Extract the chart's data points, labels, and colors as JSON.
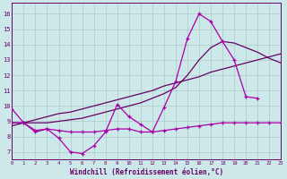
{
  "x_values": [
    0,
    1,
    2,
    3,
    4,
    5,
    6,
    7,
    8,
    9,
    10,
    11,
    12,
    13,
    14,
    15,
    16,
    17,
    18,
    19,
    20,
    21,
    22,
    23
  ],
  "jagged_y": [
    9.8,
    8.9,
    8.3,
    8.5,
    7.9,
    7.0,
    6.9,
    7.4,
    8.3,
    10.1,
    9.3,
    8.8,
    8.3,
    9.9,
    11.6,
    14.4,
    16.0,
    15.5,
    14.2,
    13.0,
    10.6,
    10.5,
    null,
    null
  ],
  "flat_y": [
    8.9,
    8.9,
    8.4,
    8.5,
    8.4,
    8.3,
    8.3,
    8.3,
    8.4,
    8.5,
    8.5,
    8.3,
    8.3,
    8.4,
    8.5,
    8.6,
    8.7,
    8.8,
    8.9,
    8.9,
    8.9,
    8.9,
    8.9,
    8.9
  ],
  "trend_straight": [
    8.7,
    8.9,
    9.1,
    9.3,
    9.5,
    9.6,
    9.8,
    10.0,
    10.2,
    10.4,
    10.6,
    10.8,
    11.0,
    11.3,
    11.5,
    11.7,
    11.9,
    12.2,
    12.4,
    12.6,
    12.8,
    13.0,
    13.2,
    13.4
  ],
  "trend_curved": [
    8.9,
    8.9,
    8.9,
    8.9,
    9.0,
    9.1,
    9.2,
    9.4,
    9.6,
    9.8,
    10.0,
    10.2,
    10.5,
    10.8,
    11.2,
    12.0,
    13.0,
    13.8,
    14.2,
    14.1,
    13.8,
    13.5,
    13.1,
    12.8
  ],
  "color_jagged": "#aa00aa",
  "color_flat": "#aa00aa",
  "color_trend": "#660066",
  "bg_color": "#cce8e8",
  "grid_color": "#aacccc",
  "yticks": [
    7,
    8,
    9,
    10,
    11,
    12,
    13,
    14,
    15,
    16
  ],
  "xlabel": "Windchill (Refroidissement éolien,°C)",
  "ylim": [
    6.5,
    16.7
  ],
  "xlim": [
    0,
    23
  ]
}
